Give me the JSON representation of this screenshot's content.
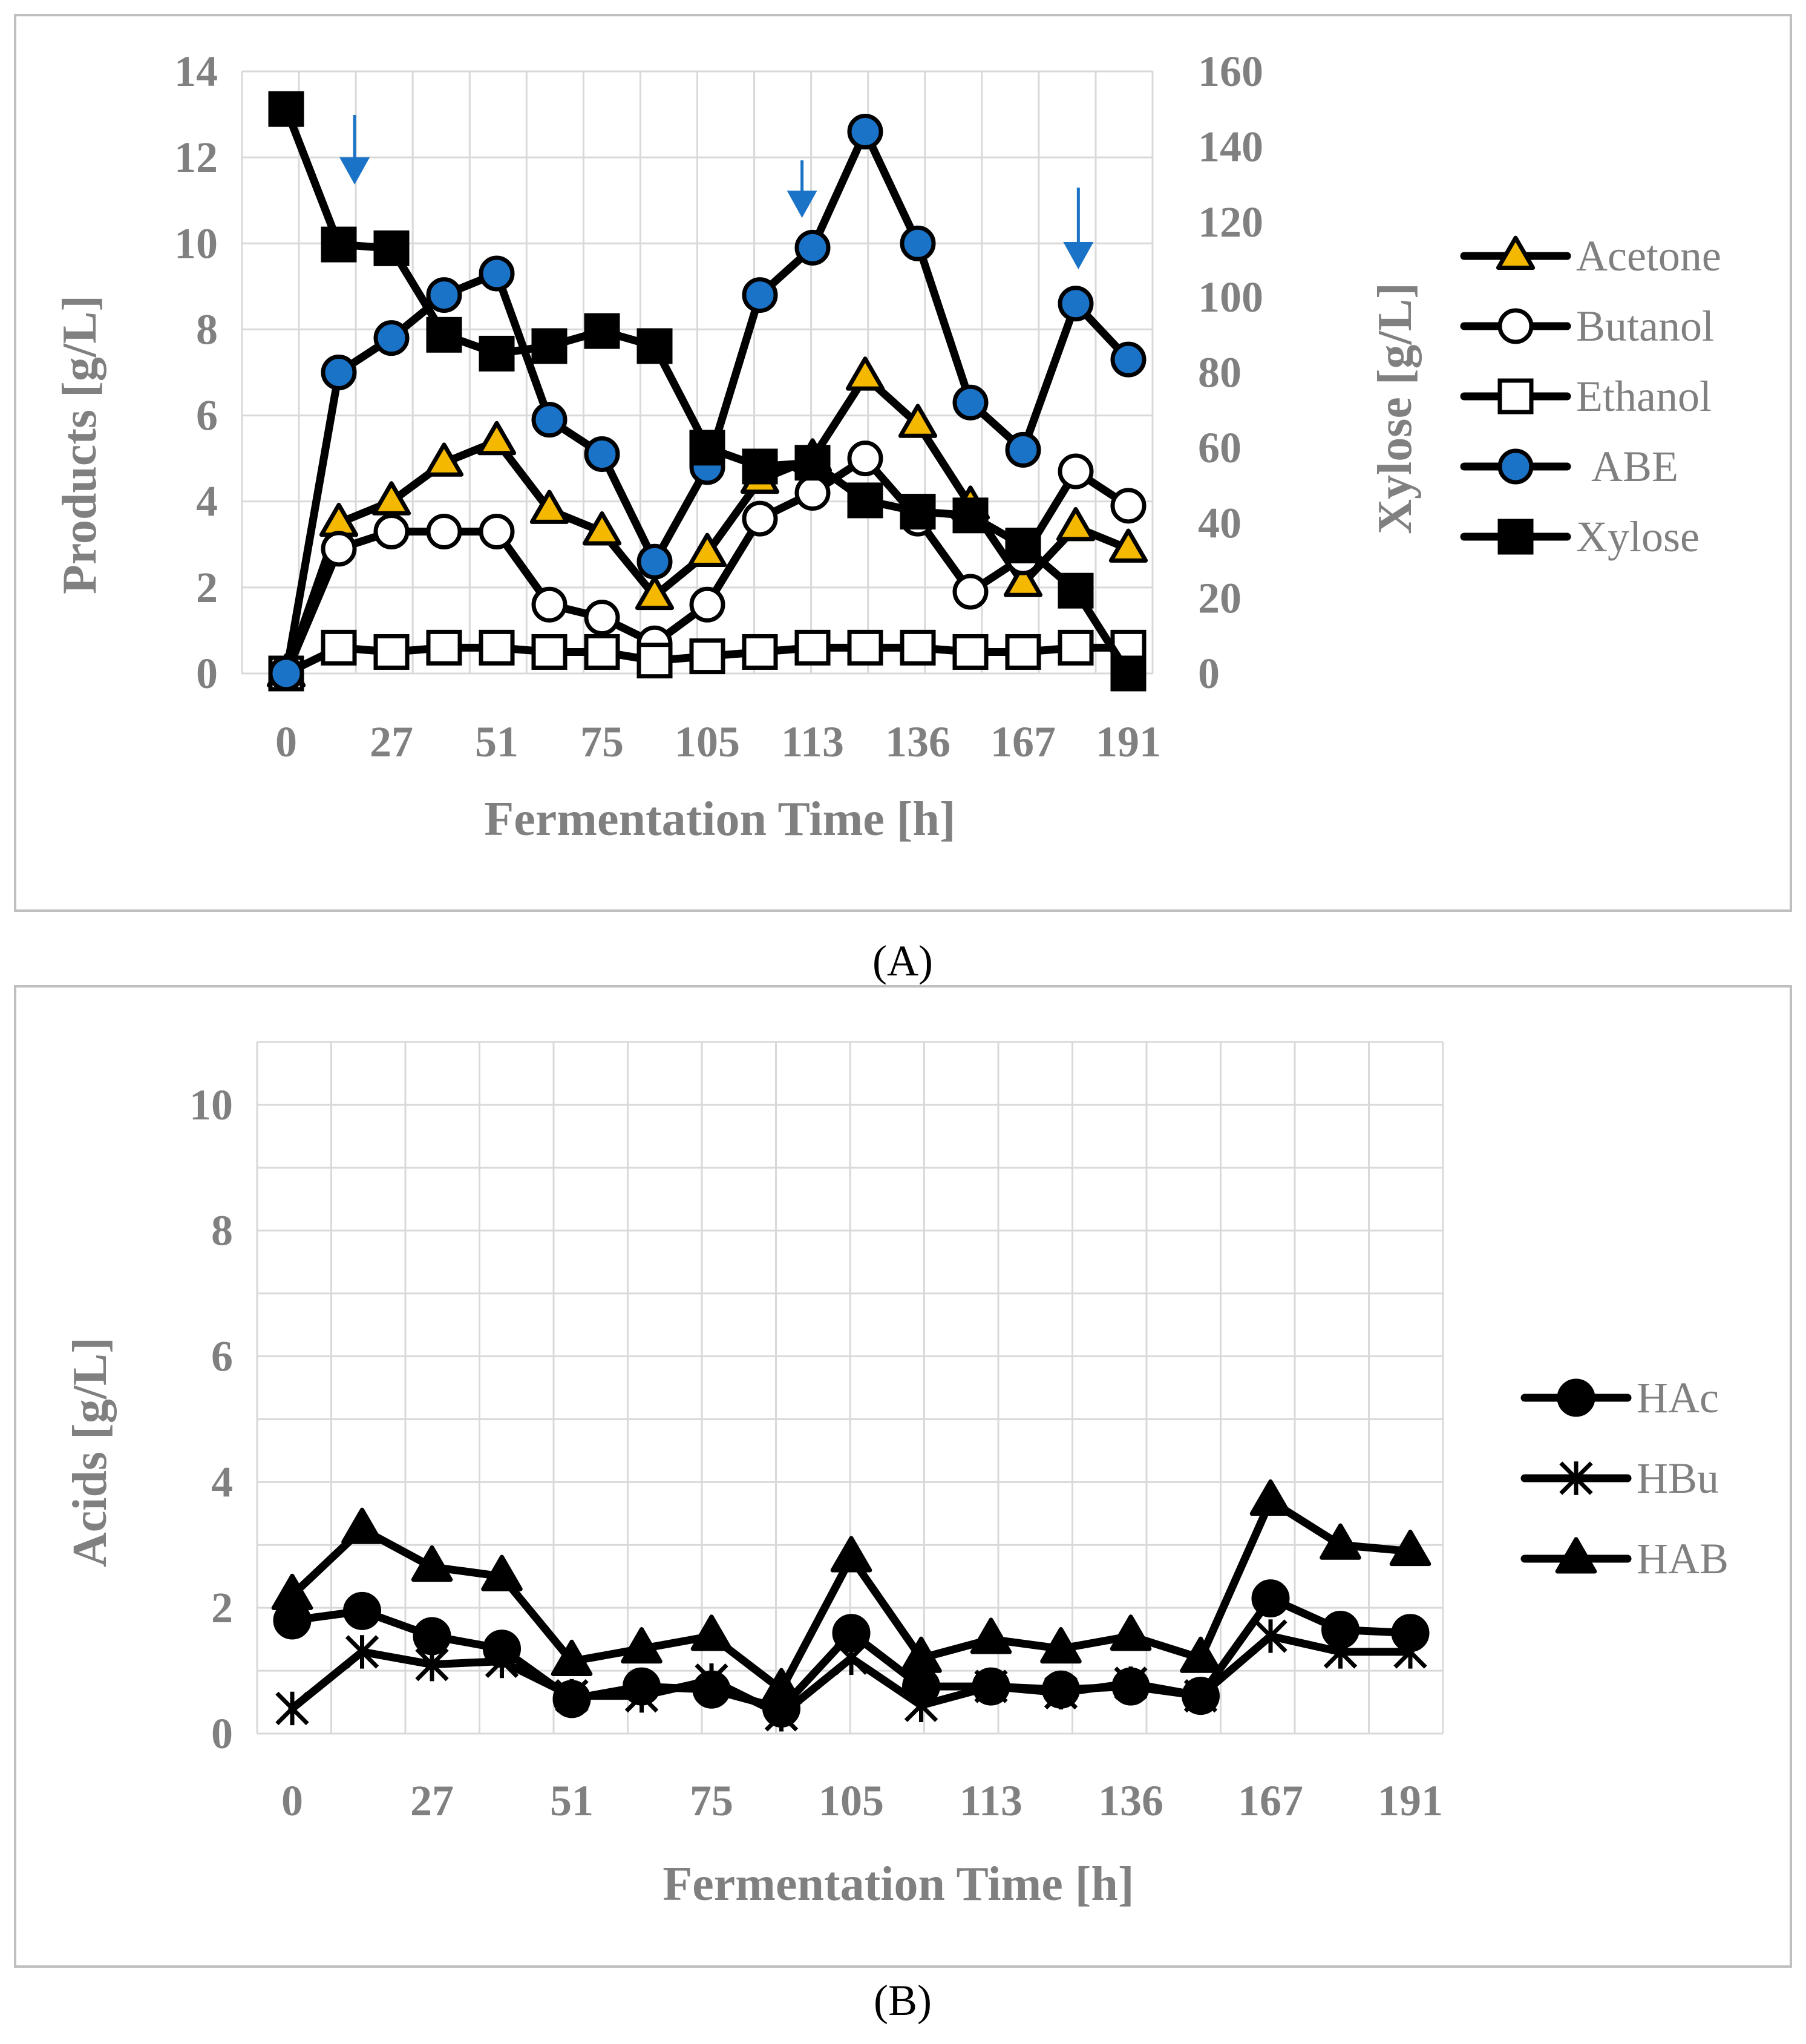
{
  "colors": {
    "line": "#000000",
    "acetone_marker": "#f5b800",
    "abe_marker": "#1a73c7",
    "arrow": "#1a73c7",
    "text": "#808080",
    "grid": "#d9d9d9"
  },
  "chart_data": [
    {
      "panel_label": "(A)",
      "type": "line",
      "xlabel": "Fermentation Time [h]",
      "ylabel": "Products [g/L]",
      "y2label": "Xylose [g/L]",
      "ylim": [
        0,
        14
      ],
      "y2lim": [
        0,
        160
      ],
      "yticks": [
        "0",
        "2",
        "4",
        "6",
        "8",
        "10",
        "12",
        "14"
      ],
      "y2ticks": [
        "0",
        "20",
        "40",
        "60",
        "80",
        "100",
        "120",
        "140",
        "160"
      ],
      "x": [
        "0",
        "",
        "27",
        "",
        "51",
        "",
        "75",
        "",
        "105",
        "",
        "113",
        "",
        "136",
        "",
        "167",
        "",
        "191"
      ],
      "legend_position": "right",
      "arrow_annotations": [
        1.3,
        9.8,
        15.05
      ],
      "series": [
        {
          "name": "Acetone",
          "marker": "triangle",
          "fill": "acetone",
          "axis": "y",
          "values": [
            0,
            3.5,
            4.0,
            4.9,
            5.4,
            3.8,
            3.3,
            1.8,
            2.8,
            4.5,
            5.0,
            6.9,
            5.8,
            3.9,
            2.1,
            3.4,
            2.9
          ]
        },
        {
          "name": "Butanol",
          "marker": "circle-open",
          "axis": "y",
          "values": [
            0,
            2.9,
            3.3,
            3.3,
            3.3,
            1.6,
            1.3,
            0.7,
            1.6,
            3.6,
            4.2,
            5.0,
            3.6,
            1.9,
            2.7,
            4.7,
            3.9
          ]
        },
        {
          "name": "Ethanol",
          "marker": "square-open",
          "axis": "y",
          "values": [
            0,
            0.6,
            0.5,
            0.6,
            0.6,
            0.5,
            0.5,
            0.3,
            0.4,
            0.5,
            0.6,
            0.6,
            0.6,
            0.5,
            0.5,
            0.6,
            0.6
          ]
        },
        {
          "name": "ABE",
          "marker": "circle",
          "fill": "abe",
          "axis": "y",
          "values": [
            0,
            7.0,
            7.8,
            8.8,
            9.3,
            5.9,
            5.1,
            2.6,
            4.8,
            8.8,
            9.9,
            12.6,
            10.0,
            6.3,
            5.2,
            8.6,
            7.3
          ]
        },
        {
          "name": "Xylose",
          "marker": "square",
          "axis": "y2",
          "values": [
            150,
            114,
            113,
            90,
            85,
            87,
            91,
            87,
            60,
            55,
            56,
            46,
            43,
            42,
            34,
            22,
            0
          ]
        }
      ]
    },
    {
      "panel_label": "(B)",
      "type": "line",
      "xlabel": "Fermentation Time [h]",
      "ylabel": "Acids [g/L]",
      "ylim": [
        0,
        11
      ],
      "yticks": [
        "0",
        "2",
        "4",
        "6",
        "8",
        "10"
      ],
      "x": [
        "0",
        "",
        "27",
        "",
        "51",
        "",
        "75",
        "",
        "105",
        "",
        "113",
        "",
        "136",
        "",
        "167",
        "",
        "191"
      ],
      "legend_position": "right",
      "series": [
        {
          "name": "HAc",
          "marker": "circle",
          "values": [
            1.8,
            1.95,
            1.55,
            1.35,
            0.55,
            0.75,
            0.7,
            0.4,
            1.6,
            0.75,
            0.75,
            0.7,
            0.75,
            0.6,
            2.15,
            1.65,
            1.6
          ]
        },
        {
          "name": "HBu",
          "marker": "star",
          "values": [
            0.4,
            1.3,
            1.1,
            1.15,
            0.6,
            0.6,
            0.85,
            0.3,
            1.2,
            0.45,
            0.75,
            0.65,
            0.8,
            0.6,
            1.55,
            1.3,
            1.3
          ]
        },
        {
          "name": "HAB",
          "marker": "triangle",
          "values": [
            2.2,
            3.25,
            2.65,
            2.5,
            1.15,
            1.35,
            1.55,
            0.7,
            2.8,
            1.2,
            1.5,
            1.35,
            1.55,
            1.2,
            3.7,
            3.0,
            2.9
          ]
        }
      ]
    }
  ]
}
